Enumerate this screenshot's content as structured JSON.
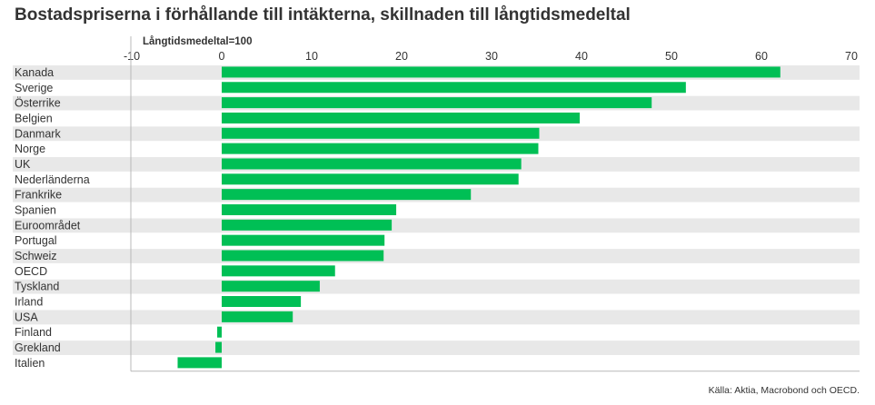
{
  "title": "Bostadspriserna i förhållande till intäkterna, skillnaden till långtidsmedeltal",
  "source": "Källa: Aktia, Macrobond och OECD.",
  "colors": {
    "bar": "#00bf55",
    "stripe": "#e8e8e8",
    "axis": "#b8b8b8",
    "text": "#333333"
  },
  "chart_data": {
    "type": "bar",
    "orientation": "horizontal",
    "title": "Bostadspriserna i förhållande till intäkterna, skillnaden till långtidsmedeltal",
    "unit_label": "Långtidsmedeltal=100",
    "xlim": [
      -10,
      70
    ],
    "xticks": [
      -10,
      0,
      10,
      20,
      30,
      40,
      50,
      60,
      70
    ],
    "xtick_labels": [
      "-10",
      "0",
      "10",
      "20",
      "30",
      "40",
      "50",
      "60",
      "70"
    ],
    "grid": false,
    "categories": [
      "Kanada",
      "Sverige",
      "Österrike",
      "Belgien",
      "Danmark",
      "Norge",
      "UK",
      "Nederländerna",
      "Frankrike",
      "Spanien",
      "Euroområdet",
      "Portugal",
      "Schweiz",
      "OECD",
      "Tyskland",
      "Irland",
      "USA",
      "Finland",
      "Grekland",
      "Italien"
    ],
    "values": [
      62.1,
      51.6,
      47.8,
      39.8,
      35.3,
      35.2,
      33.3,
      33.0,
      27.7,
      19.4,
      18.9,
      18.1,
      18.0,
      12.6,
      10.9,
      8.8,
      7.9,
      -0.5,
      -0.7,
      -4.9
    ]
  }
}
